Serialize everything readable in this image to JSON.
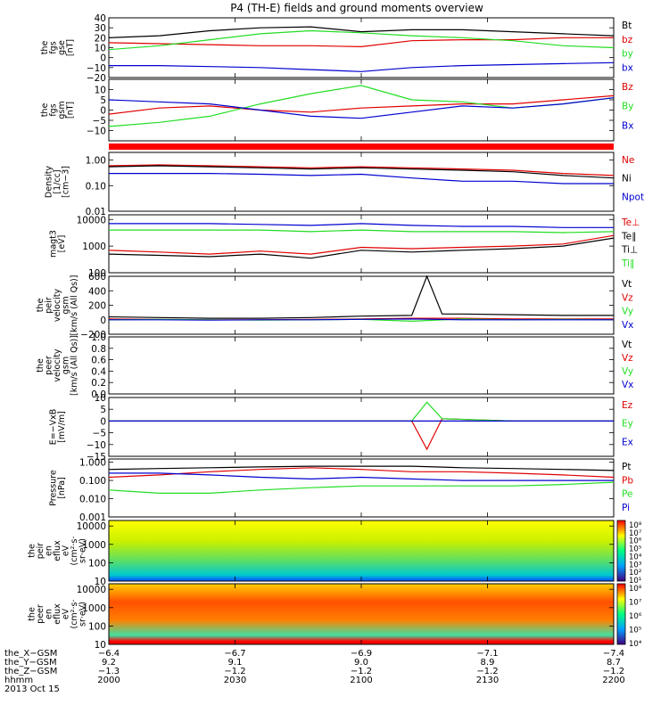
{
  "title": "P4 (TH-E) fields and ground moments overview",
  "colors": {
    "black": "#000000",
    "red": "#e00000",
    "green": "#22dd22",
    "blue": "#0000d0",
    "background": "#ffffff"
  },
  "chart_data": [
    {
      "type": "line",
      "panel": "fgs_gse",
      "ylabel_lines": [
        "the",
        "fgs",
        "gse",
        "[nT]"
      ],
      "ylim": [
        -20,
        40
      ],
      "yticks": [
        -20,
        -10,
        0,
        10,
        20,
        30,
        40
      ],
      "ytick_labels": [
        "−20",
        "−10",
        "0",
        "10",
        "20",
        "30",
        "40"
      ],
      "legend": [
        "Bt",
        "bz",
        "by",
        "bx"
      ],
      "legend_colors": [
        "#000000",
        "#e00000",
        "#22dd22",
        "#0000d0"
      ],
      "series": [
        {
          "name": "Bt",
          "color": "#000000",
          "x": [
            0,
            0.1,
            0.2,
            0.3,
            0.4,
            0.5,
            0.6,
            0.7,
            0.8,
            0.9,
            1.0
          ],
          "y": [
            20,
            22,
            27,
            30,
            31,
            26,
            28,
            28,
            26,
            24,
            22
          ]
        },
        {
          "name": "bz",
          "color": "#e00000",
          "x": [
            0,
            0.1,
            0.2,
            0.3,
            0.4,
            0.5,
            0.6,
            0.7,
            0.8,
            0.9,
            1.0
          ],
          "y": [
            15,
            14,
            13,
            12,
            12,
            11,
            17,
            18,
            18,
            20,
            20
          ]
        },
        {
          "name": "by",
          "color": "#22dd22",
          "x": [
            0,
            0.1,
            0.2,
            0.3,
            0.4,
            0.5,
            0.6,
            0.7,
            0.8,
            0.9,
            1.0
          ],
          "y": [
            8,
            12,
            18,
            24,
            27,
            25,
            22,
            20,
            17,
            12,
            10
          ]
        },
        {
          "name": "bx",
          "color": "#0000d0",
          "x": [
            0,
            0.1,
            0.2,
            0.3,
            0.4,
            0.5,
            0.6,
            0.7,
            0.8,
            0.9,
            1.0
          ],
          "y": [
            -8,
            -8,
            -9,
            -10,
            -12,
            -14,
            -10,
            -8,
            -7,
            -6,
            -5
          ]
        }
      ]
    },
    {
      "type": "line",
      "panel": "fgs_gsm",
      "ylabel_lines": [
        "the",
        "fgs",
        "gsm",
        "[nT]"
      ],
      "ylim": [
        -15,
        15
      ],
      "yticks": [
        -10,
        -5,
        0,
        5,
        10
      ],
      "ytick_labels": [
        "−10",
        "−5",
        "0",
        "5",
        "10"
      ],
      "legend": [
        "Bz",
        "By",
        "Bx"
      ],
      "legend_colors": [
        "#e00000",
        "#22dd22",
        "#0000d0"
      ],
      "series": [
        {
          "name": "Bz",
          "color": "#e00000",
          "x": [
            0,
            0.1,
            0.2,
            0.3,
            0.4,
            0.5,
            0.6,
            0.7,
            0.8,
            0.9,
            1.0
          ],
          "y": [
            -2,
            1,
            2,
            0,
            -1,
            1,
            2,
            3,
            3,
            5,
            7
          ]
        },
        {
          "name": "By",
          "color": "#22dd22",
          "x": [
            0,
            0.1,
            0.2,
            0.3,
            0.4,
            0.5,
            0.6,
            0.7,
            0.8,
            0.9,
            1.0
          ],
          "y": [
            -8,
            -6,
            -3,
            3,
            8,
            12,
            5,
            4,
            1,
            3,
            6
          ]
        },
        {
          "name": "Bx",
          "color": "#0000d0",
          "x": [
            0,
            0.1,
            0.2,
            0.3,
            0.4,
            0.5,
            0.6,
            0.7,
            0.8,
            0.9,
            1.0
          ],
          "y": [
            5,
            4,
            3,
            0,
            -3,
            -4,
            -1,
            2,
            1,
            3,
            6
          ]
        }
      ]
    },
    {
      "type": "line",
      "panel": "density",
      "ylabel_lines": [
        "Density",
        "[1/cc]",
        "[cm−3]"
      ],
      "ylog": true,
      "ylim": [
        0.01,
        2.0
      ],
      "yticks": [
        0.01,
        0.1,
        1.0
      ],
      "ytick_labels": [
        "0.01",
        "0.10",
        "1.00"
      ],
      "legend": [
        "Ne",
        "Ni",
        "Npot"
      ],
      "legend_colors": [
        "#e00000",
        "#000000",
        "#0000d0"
      ],
      "series": [
        {
          "name": "Ne",
          "color": "#e00000",
          "x": [
            0,
            0.1,
            0.2,
            0.3,
            0.4,
            0.5,
            0.6,
            0.7,
            0.8,
            0.9,
            1.0
          ],
          "y": [
            0.6,
            0.65,
            0.6,
            0.55,
            0.5,
            0.55,
            0.5,
            0.45,
            0.4,
            0.3,
            0.25
          ]
        },
        {
          "name": "Ni",
          "color": "#000000",
          "x": [
            0,
            0.1,
            0.2,
            0.3,
            0.4,
            0.5,
            0.6,
            0.7,
            0.8,
            0.9,
            1.0
          ],
          "y": [
            0.55,
            0.6,
            0.55,
            0.5,
            0.45,
            0.5,
            0.45,
            0.4,
            0.35,
            0.25,
            0.2
          ]
        },
        {
          "name": "Npot",
          "color": "#0000d0",
          "x": [
            0,
            0.1,
            0.2,
            0.3,
            0.4,
            0.5,
            0.6,
            0.7,
            0.8,
            0.9,
            1.0
          ],
          "y": [
            0.3,
            0.3,
            0.3,
            0.28,
            0.25,
            0.28,
            0.2,
            0.15,
            0.15,
            0.12,
            0.12
          ]
        }
      ]
    },
    {
      "type": "line",
      "panel": "temperature",
      "ylabel_lines": [
        "magt3",
        "[eV]"
      ],
      "ylog": true,
      "ylim": [
        100,
        15000
      ],
      "yticks": [
        100,
        1000,
        10000
      ],
      "ytick_labels": [
        "100",
        "1000",
        "10000"
      ],
      "legend": [
        "Te⊥",
        "Te∥",
        "Ti⊥",
        "Ti∥"
      ],
      "legend_colors": [
        "#e00000",
        "#000000",
        "#000000",
        "#22dd22"
      ],
      "series": [
        {
          "name": "Te⊥",
          "color": "#e00000",
          "x": [
            0,
            0.1,
            0.2,
            0.3,
            0.4,
            0.5,
            0.6,
            0.7,
            0.8,
            0.9,
            1.0
          ],
          "y": [
            700,
            600,
            500,
            650,
            500,
            900,
            800,
            900,
            1000,
            1200,
            2500
          ]
        },
        {
          "name": "Te∥",
          "color": "#000000",
          "x": [
            0,
            0.1,
            0.2,
            0.3,
            0.4,
            0.5,
            0.6,
            0.7,
            0.8,
            0.9,
            1.0
          ],
          "y": [
            500,
            450,
            400,
            500,
            350,
            700,
            600,
            700,
            800,
            1000,
            2000
          ]
        },
        {
          "name": "Ti⊥",
          "color": "#0000d0",
          "x": [
            0,
            0.1,
            0.2,
            0.3,
            0.4,
            0.5,
            0.6,
            0.7,
            0.8,
            0.9,
            1.0
          ],
          "y": [
            7000,
            7000,
            7000,
            6500,
            6000,
            7000,
            6000,
            5500,
            5500,
            5000,
            5000
          ]
        },
        {
          "name": "Ti∥",
          "color": "#22dd22",
          "x": [
            0,
            0.1,
            0.2,
            0.3,
            0.4,
            0.5,
            0.6,
            0.7,
            0.8,
            0.9,
            1.0
          ],
          "y": [
            4000,
            4000,
            4000,
            4000,
            3500,
            4000,
            3500,
            3500,
            3500,
            3200,
            3500
          ]
        }
      ]
    },
    {
      "type": "line",
      "panel": "peir_velocity",
      "ylabel_lines": [
        "the",
        "peir",
        "velocity",
        "gsm",
        "[km/s (All Qs)]"
      ],
      "ylim": [
        -200,
        600
      ],
      "yticks": [
        -200,
        0,
        200,
        400,
        600
      ],
      "ytick_labels": [
        "−200",
        "0",
        "200",
        "400",
        "600"
      ],
      "legend": [
        "Vt",
        "Vz",
        "Vy",
        "Vx"
      ],
      "legend_colors": [
        "#000000",
        "#e00000",
        "#22dd22",
        "#0000d0"
      ],
      "series": [
        {
          "name": "Vt",
          "color": "#000000",
          "x": [
            0,
            0.1,
            0.2,
            0.3,
            0.4,
            0.5,
            0.6,
            0.63,
            0.66,
            0.7,
            0.8,
            0.9,
            1.0
          ],
          "y": [
            40,
            30,
            20,
            20,
            30,
            50,
            60,
            600,
            80,
            80,
            70,
            60,
            60
          ]
        },
        {
          "name": "Vz",
          "color": "#e00000",
          "x": [
            0,
            0.1,
            0.2,
            0.3,
            0.4,
            0.5,
            0.6,
            0.7,
            0.8,
            0.9,
            1.0
          ],
          "y": [
            10,
            5,
            0,
            0,
            5,
            10,
            20,
            20,
            10,
            10,
            10
          ]
        },
        {
          "name": "Vy",
          "color": "#22dd22",
          "x": [
            0,
            0.1,
            0.2,
            0.3,
            0.4,
            0.5,
            0.6,
            0.7,
            0.8,
            0.9,
            1.0
          ],
          "y": [
            0,
            5,
            0,
            -5,
            0,
            5,
            -20,
            10,
            0,
            5,
            0
          ]
        },
        {
          "name": "Vx",
          "color": "#0000d0",
          "x": [
            0,
            0.1,
            0.2,
            0.3,
            0.4,
            0.5,
            0.6,
            0.7,
            0.8,
            0.9,
            1.0
          ],
          "y": [
            0,
            0,
            -5,
            0,
            0,
            5,
            10,
            0,
            0,
            0,
            0
          ]
        }
      ]
    },
    {
      "type": "line",
      "panel": "peer_velocity",
      "ylabel_lines": [
        "the",
        "peer",
        "velocity",
        "gsm",
        "[km/s (All Qs)]"
      ],
      "ylim": [
        0,
        1.0
      ],
      "yticks": [
        0.0,
        0.2,
        0.4,
        0.6,
        0.8,
        1.0
      ],
      "ytick_labels": [
        "0.0",
        "0.2",
        "0.4",
        "0.6",
        "0.8",
        "1.0"
      ],
      "legend": [
        "Vt",
        "Vz",
        "Vy",
        "Vx"
      ],
      "legend_colors": [
        "#000000",
        "#e00000",
        "#22dd22",
        "#0000d0"
      ],
      "series": []
    },
    {
      "type": "line",
      "panel": "e_field",
      "ylabel_lines": [
        "E=−VxB",
        "[mV/m]"
      ],
      "ylim": [
        -15,
        10
      ],
      "yticks": [
        -15,
        -10,
        -5,
        0,
        5,
        10
      ],
      "ytick_labels": [
        "−15",
        "−10",
        "−5",
        "0",
        "5",
        "10"
      ],
      "legend": [
        "Ez",
        "Ey",
        "Ex"
      ],
      "legend_colors": [
        "#e00000",
        "#22dd22",
        "#0000d0"
      ],
      "series": [
        {
          "name": "Ez",
          "color": "#e00000",
          "x": [
            0,
            0.2,
            0.4,
            0.6,
            0.63,
            0.66,
            0.8,
            1.0
          ],
          "y": [
            0,
            0,
            0,
            0,
            -12,
            1,
            0,
            0
          ]
        },
        {
          "name": "Ey",
          "color": "#22dd22",
          "x": [
            0,
            0.2,
            0.4,
            0.6,
            0.63,
            0.66,
            0.8,
            1.0
          ],
          "y": [
            0,
            0,
            0,
            0,
            8,
            1,
            0,
            0
          ]
        },
        {
          "name": "Ex",
          "color": "#0000d0",
          "x": [
            0,
            0.2,
            0.4,
            0.6,
            0.8,
            1.0
          ],
          "y": [
            0,
            0,
            0,
            0,
            0,
            0
          ]
        }
      ]
    },
    {
      "type": "line",
      "panel": "pressure",
      "ylabel_lines": [
        "Pressure",
        "[nPa]"
      ],
      "ylog": true,
      "ylim": [
        0.001,
        1.5
      ],
      "yticks": [
        0.001,
        0.01,
        0.1,
        1.0
      ],
      "ytick_labels": [
        "0.001",
        "0.010",
        "0.100",
        "1.000"
      ],
      "legend": [
        "Pt",
        "Pb",
        "Pe",
        "Pi"
      ],
      "legend_colors": [
        "#000000",
        "#e00000",
        "#22dd22",
        "#0000d0"
      ],
      "series": [
        {
          "name": "Pt",
          "color": "#000000",
          "x": [
            0,
            0.1,
            0.2,
            0.3,
            0.4,
            0.5,
            0.6,
            0.7,
            0.8,
            0.9,
            1.0
          ],
          "y": [
            0.4,
            0.45,
            0.5,
            0.55,
            0.6,
            0.6,
            0.6,
            0.5,
            0.45,
            0.4,
            0.35
          ]
        },
        {
          "name": "Pb",
          "color": "#e00000",
          "x": [
            0,
            0.1,
            0.2,
            0.3,
            0.4,
            0.5,
            0.6,
            0.7,
            0.8,
            0.9,
            1.0
          ],
          "y": [
            0.15,
            0.2,
            0.3,
            0.4,
            0.5,
            0.4,
            0.3,
            0.3,
            0.25,
            0.2,
            0.15
          ]
        },
        {
          "name": "Pe",
          "color": "#22dd22",
          "x": [
            0,
            0.1,
            0.2,
            0.3,
            0.4,
            0.5,
            0.6,
            0.7,
            0.8,
            0.9,
            1.0
          ],
          "y": [
            0.03,
            0.02,
            0.02,
            0.03,
            0.04,
            0.05,
            0.05,
            0.05,
            0.05,
            0.06,
            0.08
          ]
        },
        {
          "name": "Pi",
          "color": "#0000d0",
          "x": [
            0,
            0.1,
            0.2,
            0.3,
            0.4,
            0.5,
            0.6,
            0.7,
            0.8,
            0.9,
            1.0
          ],
          "y": [
            0.25,
            0.25,
            0.2,
            0.15,
            0.12,
            0.15,
            0.12,
            0.1,
            0.1,
            0.1,
            0.1
          ]
        }
      ]
    },
    {
      "type": "heatmap",
      "panel": "peir_spectrogram",
      "ylabel_lines": [
        "the",
        "peir",
        "en",
        "eflux",
        "eV",
        "(cm²·s·",
        "sr·eV)"
      ],
      "ylog": true,
      "ylim": [
        10,
        20000
      ],
      "yticks": [
        10,
        100,
        1000,
        10000
      ],
      "ytick_labels": [
        "10",
        "100",
        "1000",
        "10000"
      ],
      "colorbar_labels": [
        "10⁸",
        "10⁷",
        "10⁶",
        "10⁵",
        "10⁴",
        "10³",
        "10²",
        "10¹"
      ]
    },
    {
      "type": "heatmap",
      "panel": "peer_spectrogram",
      "ylabel_lines": [
        "the",
        "peer",
        "en",
        "eflux",
        "eV",
        "(cm²·s·",
        "sr·eV)"
      ],
      "ylog": true,
      "ylim": [
        10,
        20000
      ],
      "yticks": [
        10,
        100,
        1000,
        10000
      ],
      "ytick_labels": [
        "10",
        "100",
        "1000",
        "10000"
      ],
      "colorbar_labels": [
        "10⁸",
        "10⁷",
        "10⁶",
        "10⁵",
        "10⁴"
      ]
    }
  ],
  "x_axis": {
    "row_labels": [
      "the_X−GSM",
      "the_Y−GSM",
      "the_Z−GSM",
      "hhmm",
      "2013 Oct 15"
    ],
    "columns": [
      [
        "−6.4",
        "9.2",
        "−1.3",
        "2000"
      ],
      [
        "−6.7",
        "9.1",
        "−1.2",
        "2030"
      ],
      [
        "−6.9",
        "9.0",
        "−1.2",
        "2100"
      ],
      [
        "−7.1",
        "8.9",
        "−1.2",
        "2130"
      ],
      [
        "−7.4",
        "8.7",
        "−1.2",
        "2200"
      ]
    ]
  }
}
